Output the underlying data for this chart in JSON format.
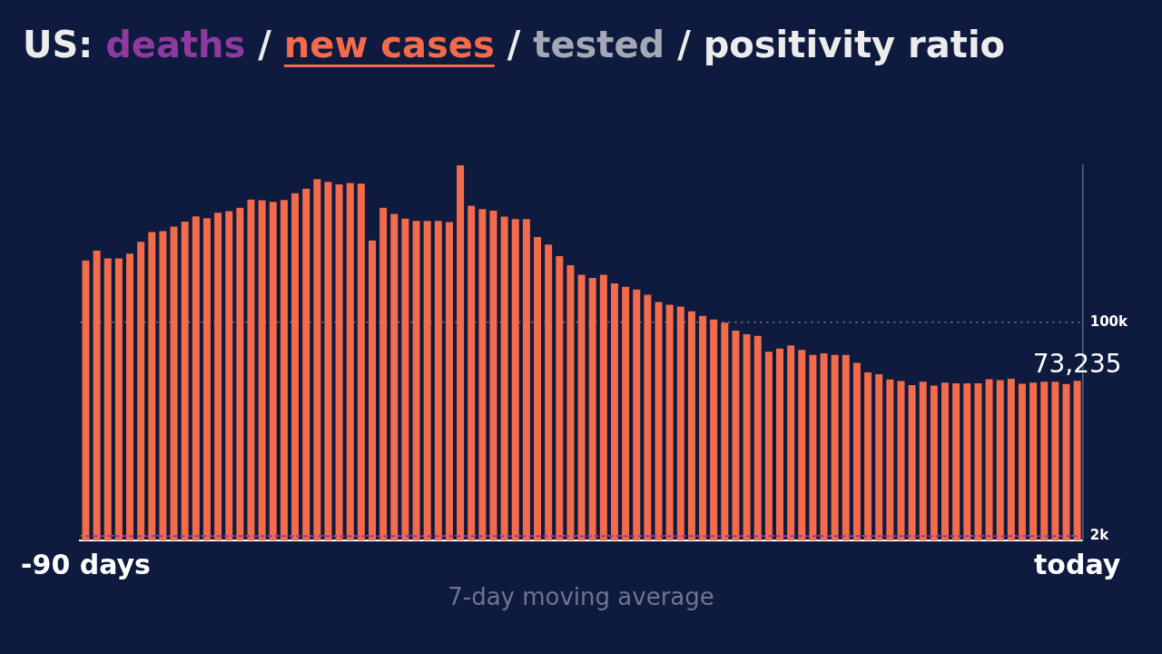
{
  "chart_data": {
    "type": "bar",
    "title": "US: deaths / new cases / tested / positivity ratio",
    "xlabel": "7-day moving average",
    "categories": [
      "-90 days",
      null,
      null,
      null,
      null,
      null,
      null,
      null,
      null,
      null,
      null,
      null,
      null,
      null,
      null,
      null,
      null,
      null,
      null,
      null,
      null,
      null,
      null,
      null,
      null,
      null,
      null,
      null,
      null,
      null,
      null,
      null,
      null,
      null,
      null,
      null,
      null,
      null,
      null,
      null,
      null,
      null,
      null,
      null,
      null,
      null,
      null,
      null,
      null,
      null,
      null,
      null,
      null,
      null,
      null,
      null,
      null,
      null,
      null,
      null,
      null,
      null,
      null,
      null,
      null,
      null,
      null,
      null,
      null,
      null,
      null,
      null,
      null,
      null,
      null,
      null,
      null,
      null,
      null,
      null,
      null,
      null,
      null,
      null,
      null,
      null,
      null,
      null,
      null,
      null,
      "today"
    ],
    "series": [
      {
        "color": "#f26b4b",
        "values": [
          128400,
          132900,
          129300,
          129300,
          131500,
          136900,
          141400,
          141800,
          143900,
          146200,
          148600,
          147700,
          150200,
          151000,
          152500,
          156300,
          156000,
          155200,
          156100,
          159200,
          161300,
          165700,
          164400,
          163300,
          163900,
          163600,
          137500,
          152500,
          149700,
          147500,
          146500,
          146500,
          146500,
          146000,
          172000,
          153500,
          151900,
          151200,
          148500,
          147300,
          147300,
          139100,
          135700,
          130400,
          126200,
          121800,
          120400,
          121800,
          117900,
          116300,
          115100,
          112700,
          109300,
          108100,
          107200,
          105100,
          103000,
          101300,
          99800,
          96200,
          94500,
          93800,
          86500,
          88000,
          89400,
          87400,
          85100,
          85800,
          85100,
          85100,
          81400,
          77000,
          76200,
          73800,
          73100,
          71200,
          72800,
          71000,
          72400,
          72100,
          72100,
          72100,
          73900,
          73500,
          74100,
          71800,
          72400,
          72800,
          72800,
          71700,
          73235
        ],
        "value_labels": [
          null,
          null,
          null,
          null,
          null,
          null,
          null,
          null,
          null,
          null,
          null,
          null,
          null,
          null,
          null,
          null,
          null,
          null,
          null,
          null,
          null,
          null,
          null,
          null,
          null,
          null,
          null,
          null,
          null,
          null,
          null,
          null,
          null,
          null,
          null,
          null,
          null,
          null,
          null,
          null,
          null,
          null,
          null,
          null,
          null,
          null,
          null,
          null,
          null,
          null,
          null,
          null,
          null,
          null,
          null,
          null,
          null,
          null,
          null,
          null,
          null,
          null,
          null,
          null,
          null,
          null,
          null,
          null,
          null,
          null,
          null,
          null,
          null,
          null,
          null,
          null,
          null,
          null,
          null,
          null,
          null,
          null,
          null,
          null,
          null,
          null,
          null,
          null,
          null,
          null,
          "73,235"
        ]
      },
      {
        "type": "line",
        "color": "#8e3a9e",
        "line_style": "dashed",
        "values": [
          2000,
          2000,
          2000,
          2000,
          2000,
          2000,
          2000,
          2000,
          2000,
          2000,
          2000,
          2000,
          2000,
          2000,
          2000,
          2000,
          2000,
          2000,
          2000,
          2000,
          2000,
          2000,
          2000,
          2000,
          2000,
          2000,
          2000,
          2000,
          2000,
          2000,
          2000,
          2000,
          2000,
          2000,
          2000,
          2000,
          2000,
          2000,
          2000,
          2000,
          2000,
          2000,
          2000,
          2000,
          2000,
          2000,
          2000,
          2000,
          2000,
          2000,
          2000,
          2000,
          2000,
          2000,
          2000,
          2000,
          2000,
          2000,
          2000,
          2000,
          2000,
          2000,
          2000,
          2000,
          2000,
          2000,
          2000,
          2000,
          2000,
          2000,
          2000,
          2000,
          2000,
          2000,
          2000,
          2000,
          2000,
          2000,
          2000,
          2000,
          2000,
          2000,
          2000,
          2000,
          2000,
          2000,
          2000,
          2000,
          2000,
          2000,
          2000
        ]
      }
    ],
    "ylim": [
      0,
      172000
    ],
    "yticks": [
      {
        "value": 2000,
        "label": "2k"
      },
      {
        "value": 100000,
        "label": "100k"
      }
    ],
    "grid": "y",
    "legend": false
  }
}
